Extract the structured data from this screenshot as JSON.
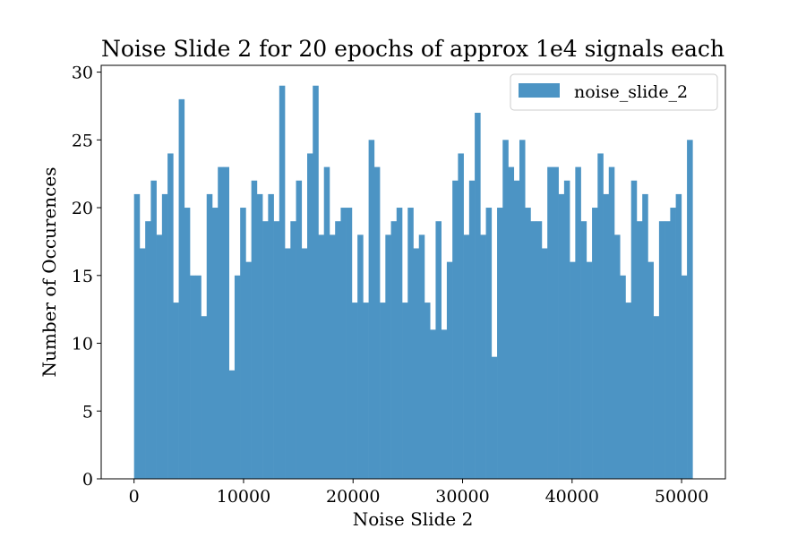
{
  "chart_data": {
    "type": "bar",
    "title": "Noise Slide 2 for 20 epochs of approx 1e4 signals each",
    "xlabel": "Noise Slide 2",
    "ylabel": "Number of Occurences",
    "xlim": [
      -3000,
      54000
    ],
    "ylim": [
      0,
      30.5
    ],
    "x_ticks": [
      0,
      10000,
      20000,
      30000,
      40000,
      50000
    ],
    "x_tick_labels": [
      "0",
      "10000",
      "20000",
      "30000",
      "40000",
      "50000"
    ],
    "y_ticks": [
      0,
      5,
      10,
      15,
      20,
      25,
      30
    ],
    "y_tick_labels": [
      "0",
      "5",
      "10",
      "15",
      "20",
      "25",
      "30"
    ],
    "grid": false,
    "legend_position": "top-right",
    "series": [
      {
        "name": "noise_slide_2",
        "color": "#4c94c4",
        "bin_start": 0,
        "bin_end": 51000,
        "values": [
          21,
          17,
          19,
          22,
          18,
          21,
          24,
          13,
          28,
          20,
          15,
          15,
          12,
          21,
          20,
          23,
          23,
          8,
          15,
          20,
          16,
          22,
          21,
          19,
          21,
          19,
          29,
          17,
          19,
          22,
          17,
          24,
          29,
          18,
          23,
          18,
          19,
          20,
          20,
          13,
          18,
          13,
          25,
          23,
          13,
          18,
          19,
          20,
          13,
          20,
          17,
          18,
          13,
          11,
          19,
          11,
          16,
          22,
          24,
          18,
          22,
          27,
          18,
          20,
          9,
          20,
          25,
          23,
          22,
          25,
          20,
          19,
          19,
          17,
          23,
          23,
          21,
          22,
          16,
          23,
          19,
          16,
          20,
          24,
          21,
          23,
          18,
          15,
          13,
          22,
          19,
          21,
          16,
          12,
          19,
          19,
          20,
          21,
          15,
          25
        ]
      }
    ]
  }
}
